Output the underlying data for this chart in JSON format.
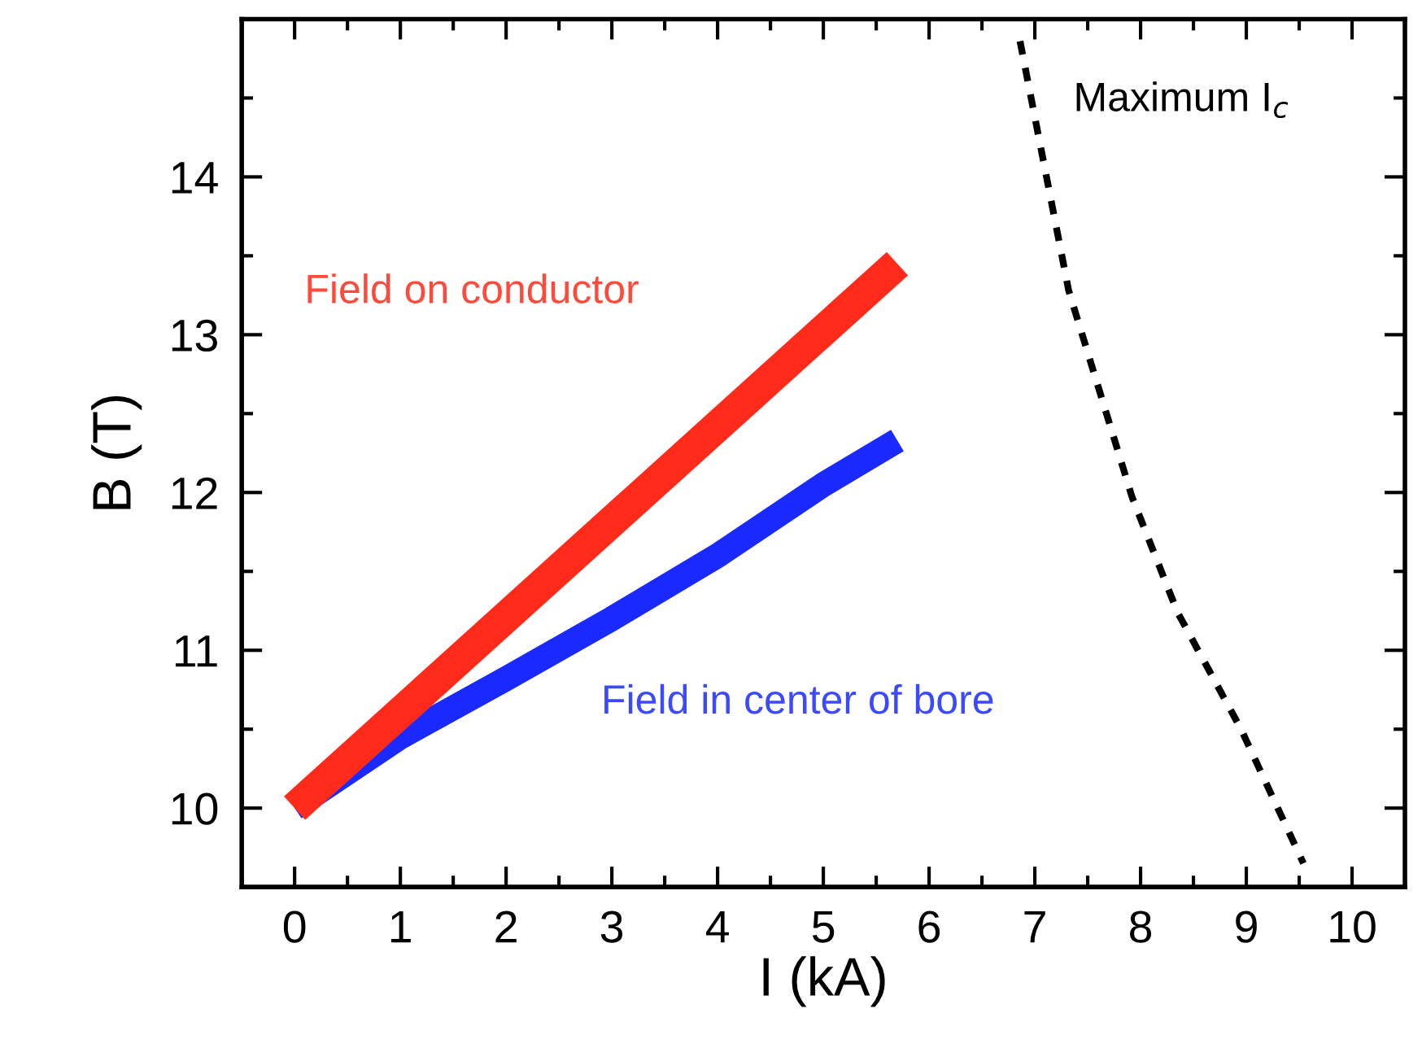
{
  "chart_data": {
    "type": "line",
    "xlabel": "I (kA)",
    "ylabel": "B (T)",
    "xlim": [
      -0.5,
      10.5
    ],
    "ylim": [
      9.5,
      15
    ],
    "xticks": [
      0,
      1,
      2,
      3,
      4,
      5,
      6,
      7,
      8,
      9,
      10
    ],
    "yticks": [
      10,
      11,
      12,
      13,
      14
    ],
    "grid": false,
    "series": [
      {
        "name": "Field on conductor",
        "color": "#ff2a1a",
        "line_style": "solid",
        "x": [
          0,
          5.7
        ],
        "values": [
          10,
          13.45
        ]
      },
      {
        "name": "Field in center of bore",
        "color": "#1a2aff",
        "line_style": "solid",
        "x": [
          0,
          1,
          2,
          3,
          4,
          5,
          5.7
        ],
        "values": [
          10,
          10.45,
          10.82,
          11.2,
          11.6,
          12.05,
          12.33
        ]
      },
      {
        "name": "Maximum I$_{c}$",
        "color": "#000000",
        "line_style": "dashed",
        "x": [
          6.86,
          7.32,
          7.92,
          8.35,
          8.95,
          9.54
        ],
        "values": [
          14.86,
          13.28,
          11.97,
          11.24,
          10.5,
          9.65
        ]
      }
    ]
  }
}
